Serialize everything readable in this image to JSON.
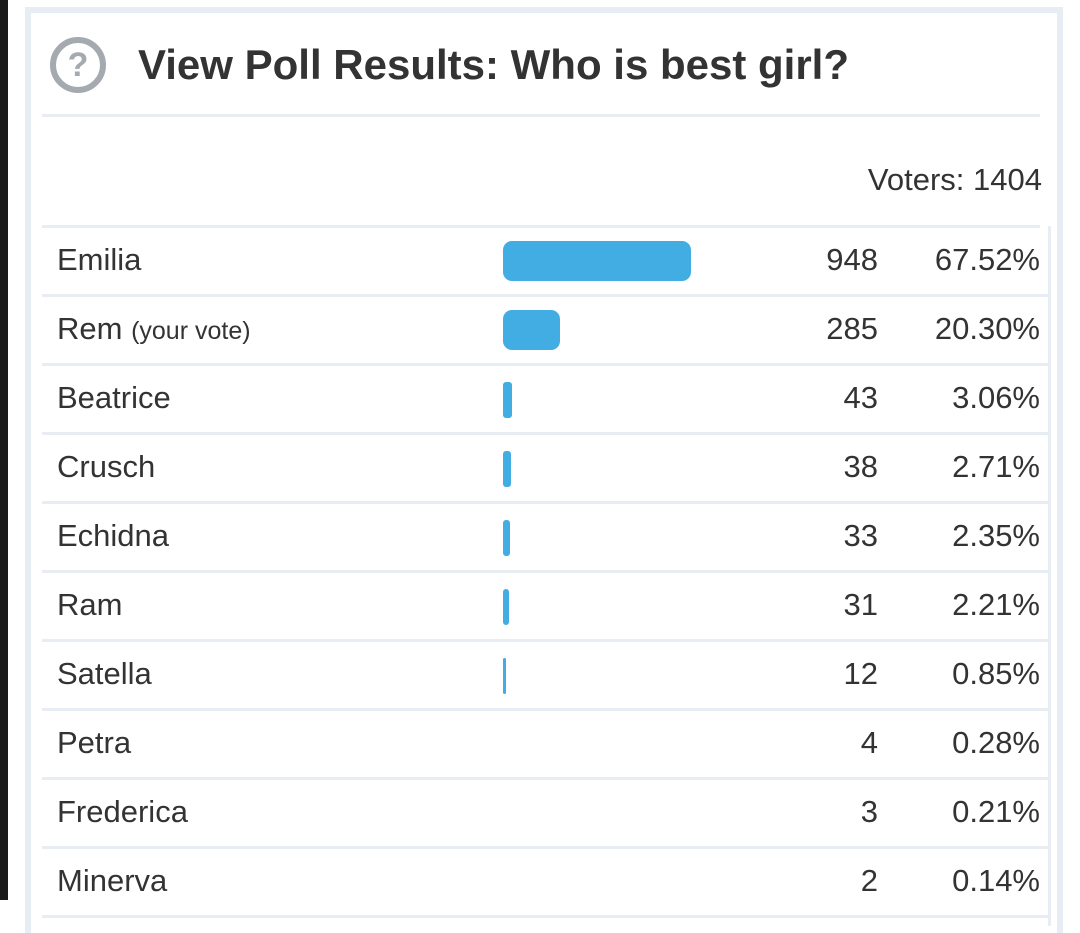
{
  "poll": {
    "title": "View Poll Results: Who is best girl?",
    "help_icon": "question-circle-icon",
    "voters_label": "Voters: 1404",
    "bar_color": "#42ade2",
    "options": [
      {
        "name": "Emilia",
        "note": "",
        "votes": "948",
        "percent": "67.52%",
        "pct": 67.52
      },
      {
        "name": "Rem",
        "note": "(your vote)",
        "votes": "285",
        "percent": "20.30%",
        "pct": 20.3
      },
      {
        "name": "Beatrice",
        "note": "",
        "votes": "43",
        "percent": "3.06%",
        "pct": 3.06
      },
      {
        "name": "Crusch",
        "note": "",
        "votes": "38",
        "percent": "2.71%",
        "pct": 2.71
      },
      {
        "name": "Echidna",
        "note": "",
        "votes": "33",
        "percent": "2.35%",
        "pct": 2.35
      },
      {
        "name": "Ram",
        "note": "",
        "votes": "31",
        "percent": "2.21%",
        "pct": 2.21
      },
      {
        "name": "Satella",
        "note": "",
        "votes": "12",
        "percent": "0.85%",
        "pct": 0.85
      },
      {
        "name": "Petra",
        "note": "",
        "votes": "4",
        "percent": "0.28%",
        "pct": 0.28
      },
      {
        "name": "Frederica",
        "note": "",
        "votes": "3",
        "percent": "0.21%",
        "pct": 0.21
      },
      {
        "name": "Minerva",
        "note": "",
        "votes": "2",
        "percent": "0.14%",
        "pct": 0.14
      }
    ]
  }
}
